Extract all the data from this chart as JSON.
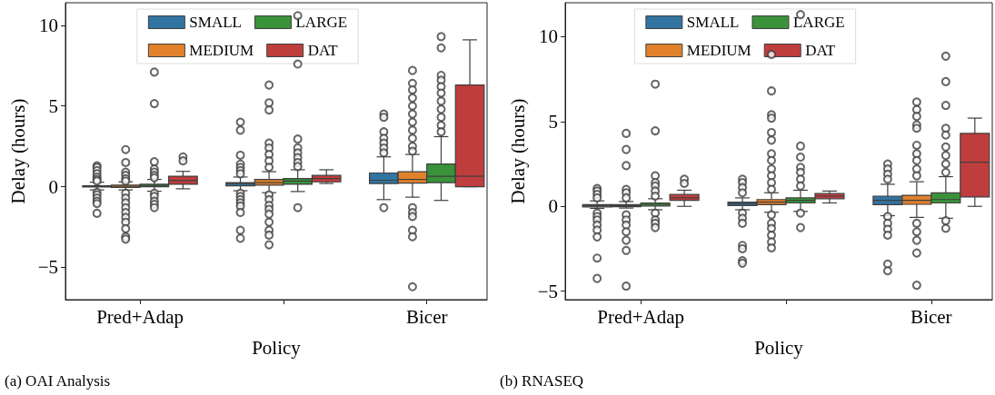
{
  "chart_data": [
    {
      "type": "box",
      "title": "(a) OAI Analysis",
      "xlabel": "Policy",
      "ylabel": "Delay (hours)",
      "categories": [
        "Pred+Adap",
        null,
        "Bicer"
      ],
      "ylim": [
        -7,
        11.4
      ],
      "yticks": [
        -5,
        0,
        5,
        10
      ],
      "legend": "top",
      "grid": false,
      "marker": "circle",
      "series": [
        {
          "name": "SMALL",
          "color": "#3274a1",
          "boxes": [
            {
              "low": -0.2,
              "q1": -0.02,
              "median": 0.02,
              "q3": 0.05,
              "high": 0.28,
              "outliers": [
                1.3,
                1.2,
                1.0,
                0.8,
                0.6,
                0.45,
                0.35,
                -0.35,
                -0.5,
                -0.7,
                -0.9,
                -1.05,
                -1.65
              ]
            },
            {
              "low": -0.25,
              "q1": 0.05,
              "median": 0.18,
              "q3": 0.25,
              "high": 0.6,
              "outliers": [
                4.0,
                3.5,
                1.95,
                1.4,
                1.2,
                1.0,
                0.8,
                -0.4,
                -0.6,
                -0.8,
                -1.0,
                -1.2,
                -1.6,
                -2.7,
                -3.2
              ]
            },
            {
              "low": -0.8,
              "q1": 0.2,
              "median": 0.4,
              "q3": 0.85,
              "high": 1.85,
              "outliers": [
                4.5,
                4.3,
                3.4,
                3.0,
                2.7,
                2.4,
                2.1,
                -1.3
              ]
            }
          ]
        },
        {
          "name": "MEDIUM",
          "color": "#e1812c",
          "boxes": [
            {
              "low": -0.2,
              "q1": -0.05,
              "median": 0.02,
              "q3": 0.1,
              "high": 0.3,
              "outliers": [
                2.3,
                1.5,
                0.9,
                0.7,
                0.5,
                0.35,
                -0.4,
                -0.7,
                -1.0,
                -1.3,
                -1.6,
                -1.9,
                -2.2,
                -2.6,
                -3.1,
                -3.25
              ]
            },
            {
              "low": -0.37,
              "q1": 0.1,
              "median": 0.25,
              "q3": 0.45,
              "high": 0.93,
              "outliers": [
                6.3,
                5.2,
                4.75,
                2.7,
                2.4,
                2.0,
                1.6,
                1.2,
                -0.5,
                -0.8,
                -1.15,
                -1.4,
                -1.7,
                -2.2,
                -2.7,
                -3.0,
                -3.6
              ]
            },
            {
              "low": -0.65,
              "q1": 0.22,
              "median": 0.45,
              "q3": 0.93,
              "high": 2.0,
              "outliers": [
                7.2,
                6.4,
                6.0,
                5.5,
                5.0,
                4.5,
                4.0,
                3.5,
                3.0,
                2.5,
                2.2,
                -1.3,
                -1.6,
                -1.85,
                -2.7,
                -3.1,
                -6.2
              ]
            }
          ]
        },
        {
          "name": "LARGE",
          "color": "#3a923a",
          "boxes": [
            {
              "low": -0.28,
              "q1": 0.0,
              "median": 0.08,
              "q3": 0.15,
              "high": 0.45,
              "outliers": [
                7.1,
                5.15,
                1.55,
                1.1,
                0.9,
                0.7,
                0.55,
                -0.4,
                -0.6,
                -0.9,
                -1.1,
                -1.3
              ]
            },
            {
              "low": -0.3,
              "q1": 0.15,
              "median": 0.35,
              "q3": 0.5,
              "high": 1.05,
              "outliers": [
                10.6,
                7.6,
                2.95,
                2.4,
                2.1,
                1.8,
                1.5,
                1.25,
                -1.3
              ]
            },
            {
              "low": -0.85,
              "q1": 0.25,
              "median": 0.65,
              "q3": 1.4,
              "high": 3.1,
              "outliers": [
                9.3,
                8.6,
                6.9,
                6.6,
                6.2,
                5.8,
                5.3,
                4.8,
                4.3,
                3.8,
                3.4
              ]
            }
          ]
        },
        {
          "name": "DAT",
          "color": "#c03d3e",
          "boxes": [
            {
              "low": -0.13,
              "q1": 0.15,
              "median": 0.38,
              "q3": 0.65,
              "high": 0.95,
              "outliers": [
                1.85,
                1.6
              ]
            },
            {
              "low": 0.2,
              "q1": 0.3,
              "median": 0.5,
              "q3": 0.7,
              "high": 1.05
            },
            {
              "low": 0,
              "q1": 0,
              "median": 0.65,
              "q3": 6.3,
              "high": 9.1
            }
          ]
        }
      ]
    },
    {
      "type": "box",
      "title": "(b) RNASEQ",
      "xlabel": "Policy",
      "ylabel": "Delay (hours)",
      "categories": [
        "Pred+Adap",
        null,
        "Bicer"
      ],
      "ylim": [
        -5.5,
        12
      ],
      "yticks": [
        -5,
        0,
        5,
        10
      ],
      "legend": "top",
      "grid": false,
      "marker": "circle",
      "series": [
        {
          "name": "SMALL",
          "color": "#3274a1",
          "boxes": [
            {
              "low": -0.12,
              "q1": -0.03,
              "median": 0.05,
              "q3": 0.1,
              "high": 0.32,
              "outliers": [
                1.05,
                0.9,
                0.7,
                0.5,
                -0.4,
                -0.6,
                -0.8,
                -1.1,
                -1.4,
                -1.8,
                -3.05,
                -4.25
              ]
            },
            {
              "low": -0.2,
              "q1": 0.05,
              "median": 0.15,
              "q3": 0.25,
              "high": 0.5,
              "outliers": [
                1.6,
                1.4,
                1.1,
                0.8,
                -0.4,
                -0.7,
                -1.0,
                -2.3,
                -2.5,
                -3.2,
                -3.35
              ]
            },
            {
              "low": -0.55,
              "q1": 0.1,
              "median": 0.35,
              "q3": 0.6,
              "high": 1.3,
              "outliers": [
                2.5,
                2.2,
                1.9,
                1.6,
                -0.6,
                -1.0,
                -1.35,
                -1.7,
                -3.4,
                -3.8
              ]
            }
          ]
        },
        {
          "name": "MEDIUM",
          "color": "#e1812c",
          "boxes": [
            {
              "low": -0.1,
              "q1": -0.02,
              "median": 0.05,
              "q3": 0.1,
              "high": 0.28,
              "outliers": [
                4.3,
                3.35,
                2.4,
                1.0,
                0.8,
                0.5,
                -0.5,
                -0.8,
                -1.1,
                -1.5,
                -2.0,
                -2.6,
                -4.7
              ]
            },
            {
              "low": -0.35,
              "q1": 0.1,
              "median": 0.25,
              "q3": 0.4,
              "high": 0.8,
              "outliers": [
                8.95,
                6.8,
                5.4,
                5.2,
                4.35,
                3.9,
                3.1,
                2.7,
                2.2,
                1.8,
                1.4,
                1.0,
                -0.5,
                -1.0,
                -1.3,
                -1.7,
                -2.1,
                -2.45
              ]
            },
            {
              "low": -0.65,
              "q1": 0.12,
              "median": 0.35,
              "q3": 0.65,
              "high": 1.45,
              "outliers": [
                6.15,
                5.7,
                5.3,
                4.8,
                4.6,
                3.6,
                3.1,
                2.7,
                2.2,
                1.8,
                -1.0,
                -1.5,
                -2.0,
                -2.75,
                -4.65
              ]
            }
          ]
        },
        {
          "name": "LARGE",
          "color": "#3a923a",
          "boxes": [
            {
              "low": -0.2,
              "q1": 0.02,
              "median": 0.12,
              "q3": 0.2,
              "high": 0.45,
              "outliers": [
                7.2,
                4.45,
                1.8,
                1.4,
                1.2,
                0.9,
                0.6,
                -0.4,
                -0.8,
                -1.0,
                -1.25
              ]
            },
            {
              "low": -0.3,
              "q1": 0.2,
              "median": 0.35,
              "q3": 0.5,
              "high": 0.95,
              "outliers": [
                11.3,
                3.55,
                2.9,
                2.3,
                2.0,
                1.6,
                1.2,
                -0.4,
                -1.25
              ]
            },
            {
              "low": -0.7,
              "q1": 0.2,
              "median": 0.4,
              "q3": 0.8,
              "high": 1.75,
              "outliers": [
                8.85,
                7.35,
                5.95,
                4.6,
                4.2,
                3.5,
                3.0,
                2.5,
                2.0,
                -0.85,
                -1.3
              ]
            }
          ]
        },
        {
          "name": "DAT",
          "color": "#c03d3e",
          "boxes": [
            {
              "low": 0,
              "q1": 0.35,
              "median": 0.5,
              "q3": 0.7,
              "high": 0.95,
              "outliers": [
                1.6,
                1.35
              ]
            },
            {
              "low": 0.2,
              "q1": 0.45,
              "median": 0.6,
              "q3": 0.75,
              "high": 0.9
            },
            {
              "low": 0,
              "q1": 0.55,
              "median": 2.6,
              "q3": 4.3,
              "high": 5.2
            }
          ]
        }
      ]
    }
  ]
}
